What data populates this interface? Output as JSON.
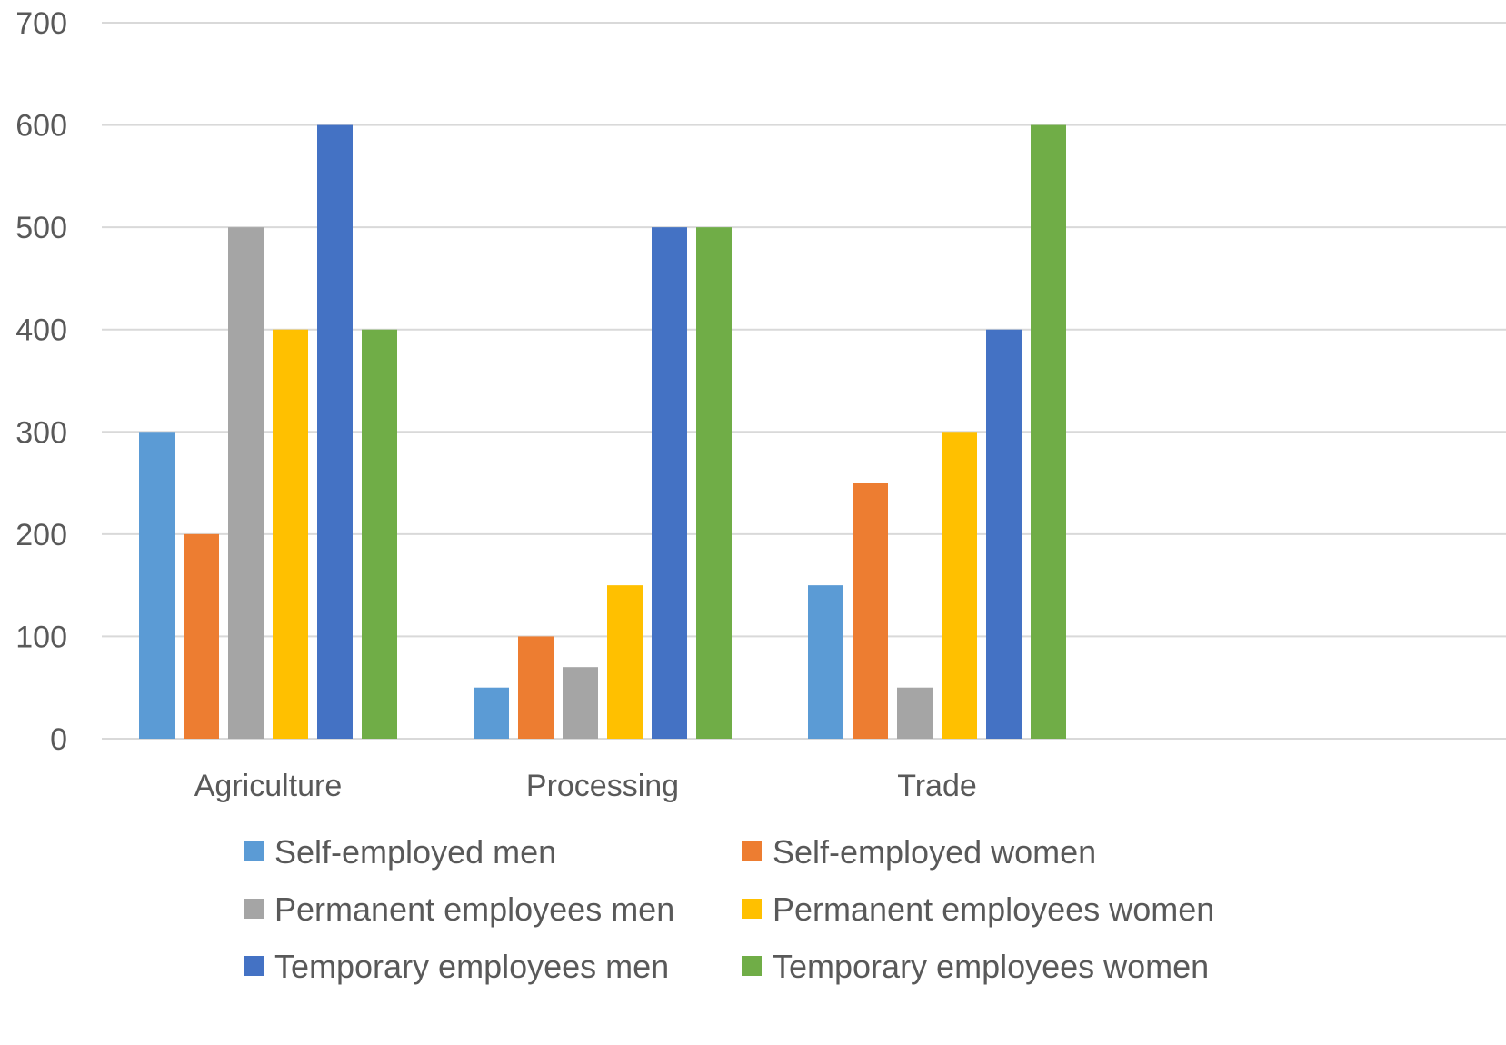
{
  "chart_data": {
    "type": "bar",
    "categories": [
      "Agriculture",
      "Processing",
      "Trade"
    ],
    "series": [
      {
        "name": "Self-employed men",
        "color": "#5B9BD5",
        "values": [
          300,
          50,
          150
        ]
      },
      {
        "name": "Self-employed women",
        "color": "#ED7D31",
        "values": [
          200,
          100,
          250
        ]
      },
      {
        "name": "Permanent employees men",
        "color": "#A5A5A5",
        "values": [
          500,
          70,
          50
        ]
      },
      {
        "name": "Permanent employees women",
        "color": "#FFC000",
        "values": [
          400,
          150,
          300
        ]
      },
      {
        "name": "Temporary employees men",
        "color": "#4472C4",
        "values": [
          600,
          500,
          400
        ]
      },
      {
        "name": "Temporary employees women",
        "color": "#70AD47",
        "values": [
          400,
          500,
          600
        ]
      }
    ],
    "ylim": [
      0,
      700
    ],
    "yticks": [
      0,
      100,
      200,
      300,
      400,
      500,
      600,
      700
    ],
    "title": "",
    "xlabel": "",
    "ylabel": "",
    "grid": true,
    "legend_position": "bottom",
    "gridline_color": "#D9D9D9",
    "text_color": "#595959"
  }
}
